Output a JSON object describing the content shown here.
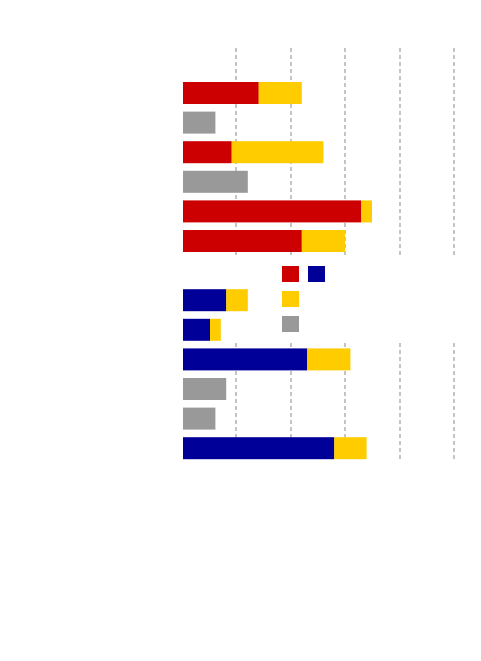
{
  "chart_data": {
    "type": "bar",
    "orientation": "horizontal",
    "stacked": true,
    "title": "",
    "xlabel": "",
    "ylabel": "",
    "xlim": [
      0,
      10
    ],
    "grid": true,
    "legend": "center",
    "categories": [
      "",
      "",
      "",
      "",
      "",
      "",
      "",
      "",
      "",
      "",
      "",
      "",
      ""
    ],
    "series": [
      {
        "color": "#cc0000",
        "values": [
          1.4,
          0,
          0.9,
          0,
          3.3,
          2.2,
          null,
          0,
          0,
          0,
          0,
          0,
          0
        ]
      },
      {
        "color": "#000099",
        "values": [
          0,
          0,
          0,
          0,
          0,
          0,
          null,
          0.8,
          0.5,
          2.3,
          0,
          0,
          2.8
        ]
      },
      {
        "color": "#ffcc00",
        "values": [
          0.8,
          0,
          1.7,
          0,
          0.2,
          0.8,
          null,
          0.4,
          0.2,
          0.8,
          0,
          0,
          0.6
        ]
      },
      {
        "color": "#999999",
        "values": [
          0,
          0.6,
          0,
          1.2,
          0,
          0,
          null,
          0,
          0,
          0,
          0.8,
          0.6,
          0
        ]
      }
    ],
    "legend_swatches": [
      {
        "row": 0,
        "col": 0,
        "color": "#cc0000"
      },
      {
        "row": 0,
        "col": 1,
        "color": "#000099"
      },
      {
        "row": 1,
        "col": 0,
        "color": "#ffcc00"
      },
      {
        "row": 2,
        "col": 0,
        "color": "#999999"
      }
    ]
  }
}
